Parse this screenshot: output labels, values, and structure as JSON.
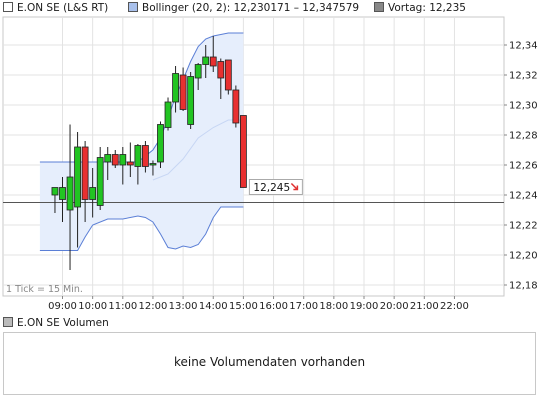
{
  "legend": {
    "instrument": "E.ON SE (L&S RT)",
    "bollinger": "Bollinger (20, 2): 12,230171 – 12,347579",
    "previous_close": "Vortag: 12,235"
  },
  "colors": {
    "up": "#22c422",
    "down": "#e83030",
    "band_fill": "#e6eefc",
    "band_line": "#5b7fd6",
    "grid": "#e3e3e3",
    "previous_close_line": "#555555",
    "price_arrow": "#e03030"
  },
  "tick_note": "1 Tick = 15 Min.",
  "price_label": "12,245",
  "volume": {
    "title": "E.ON SE Volumen",
    "message": "keine Volumendaten vorhanden"
  },
  "chart_data": {
    "type": "candlestick",
    "y_ticks": [
      "12,18",
      "12,20",
      "12,22",
      "12,24",
      "12,26",
      "12,28",
      "12,30",
      "12,32",
      "12,34"
    ],
    "x_ticks": [
      "09:00",
      "10:00",
      "11:00",
      "12:00",
      "13:00",
      "14:00",
      "15:00",
      "16:00",
      "17:00",
      "18:00",
      "19:00",
      "20:00",
      "21:00",
      "22:00"
    ],
    "ylim": [
      12.18,
      12.35
    ],
    "xlim": [
      8.5,
      22.6
    ],
    "previous_close": 12.235,
    "last_price": 12.245,
    "interval_minutes": 15,
    "candles": [
      {
        "t": 8.75,
        "o": 12.24,
        "h": 12.245,
        "l": 12.228,
        "c": 12.245
      },
      {
        "t": 9.0,
        "o": 12.237,
        "h": 12.252,
        "l": 12.222,
        "c": 12.245
      },
      {
        "t": 9.25,
        "o": 12.23,
        "h": 12.287,
        "l": 12.19,
        "c": 12.252
      },
      {
        "t": 9.5,
        "o": 12.232,
        "h": 12.282,
        "l": 12.205,
        "c": 12.272
      },
      {
        "t": 9.75,
        "o": 12.272,
        "h": 12.276,
        "l": 12.222,
        "c": 12.237
      },
      {
        "t": 10.0,
        "o": 12.237,
        "h": 12.258,
        "l": 12.225,
        "c": 12.245
      },
      {
        "t": 10.25,
        "o": 12.233,
        "h": 12.272,
        "l": 12.23,
        "c": 12.265
      },
      {
        "t": 10.5,
        "o": 12.262,
        "h": 12.272,
        "l": 12.25,
        "c": 12.267
      },
      {
        "t": 10.75,
        "o": 12.267,
        "h": 12.27,
        "l": 12.258,
        "c": 12.26
      },
      {
        "t": 11.0,
        "o": 12.26,
        "h": 12.272,
        "l": 12.247,
        "c": 12.267
      },
      {
        "t": 11.25,
        "o": 12.262,
        "h": 12.275,
        "l": 12.252,
        "c": 12.26
      },
      {
        "t": 11.5,
        "o": 12.259,
        "h": 12.274,
        "l": 12.247,
        "c": 12.273
      },
      {
        "t": 11.75,
        "o": 12.273,
        "h": 12.276,
        "l": 12.255,
        "c": 12.259
      },
      {
        "t": 12.0,
        "o": 12.26,
        "h": 12.263,
        "l": 12.253,
        "c": 12.261
      },
      {
        "t": 12.25,
        "o": 12.262,
        "h": 12.289,
        "l": 12.258,
        "c": 12.287
      },
      {
        "t": 12.5,
        "o": 12.285,
        "h": 12.305,
        "l": 12.283,
        "c": 12.302
      },
      {
        "t": 12.75,
        "o": 12.302,
        "h": 12.326,
        "l": 12.295,
        "c": 12.321
      },
      {
        "t": 13.0,
        "o": 12.32,
        "h": 12.325,
        "l": 12.296,
        "c": 12.297
      },
      {
        "t": 13.25,
        "o": 12.287,
        "h": 12.322,
        "l": 12.284,
        "c": 12.319
      },
      {
        "t": 13.5,
        "o": 12.318,
        "h": 12.328,
        "l": 12.31,
        "c": 12.327
      },
      {
        "t": 13.75,
        "o": 12.327,
        "h": 12.34,
        "l": 12.318,
        "c": 12.332
      },
      {
        "t": 14.0,
        "o": 12.332,
        "h": 12.346,
        "l": 12.322,
        "c": 12.326
      },
      {
        "t": 14.25,
        "o": 12.329,
        "h": 12.331,
        "l": 12.304,
        "c": 12.318
      },
      {
        "t": 14.5,
        "o": 12.33,
        "h": 12.33,
        "l": 12.307,
        "c": 12.31
      },
      {
        "t": 14.75,
        "o": 12.31,
        "h": 12.313,
        "l": 12.285,
        "c": 12.288
      },
      {
        "t": 15.0,
        "o": 12.293,
        "h": 12.293,
        "l": 12.245,
        "c": 12.245
      }
    ],
    "bollinger_upper": [
      [
        8.25,
        12.262
      ],
      [
        8.75,
        12.262
      ],
      [
        9.0,
        12.262
      ],
      [
        9.5,
        12.262
      ],
      [
        10.0,
        12.262
      ],
      [
        10.5,
        12.262
      ],
      [
        11.0,
        12.262
      ],
      [
        11.5,
        12.262
      ],
      [
        12.0,
        12.27
      ],
      [
        12.25,
        12.278
      ],
      [
        12.5,
        12.291
      ],
      [
        12.75,
        12.306
      ],
      [
        13.0,
        12.317
      ],
      [
        13.25,
        12.329
      ],
      [
        13.5,
        12.339
      ],
      [
        13.75,
        12.344
      ],
      [
        14.0,
        12.346
      ],
      [
        14.5,
        12.348
      ],
      [
        15.0,
        12.348
      ]
    ],
    "bollinger_lower": [
      [
        8.25,
        12.203
      ],
      [
        8.75,
        12.203
      ],
      [
        9.0,
        12.203
      ],
      [
        9.5,
        12.203
      ],
      [
        9.75,
        12.212
      ],
      [
        10.0,
        12.22
      ],
      [
        10.5,
        12.224
      ],
      [
        11.0,
        12.224
      ],
      [
        11.5,
        12.226
      ],
      [
        11.75,
        12.225
      ],
      [
        12.0,
        12.222
      ],
      [
        12.25,
        12.214
      ],
      [
        12.5,
        12.205
      ],
      [
        12.75,
        12.204
      ],
      [
        13.0,
        12.206
      ],
      [
        13.25,
        12.205
      ],
      [
        13.5,
        12.207
      ],
      [
        13.75,
        12.214
      ],
      [
        14.0,
        12.225
      ],
      [
        14.25,
        12.232
      ],
      [
        14.5,
        12.232
      ],
      [
        15.0,
        12.232
      ]
    ],
    "bollinger_middle": [
      [
        12.0,
        12.25
      ],
      [
        12.5,
        12.254
      ],
      [
        13.0,
        12.264
      ],
      [
        13.5,
        12.278
      ],
      [
        14.0,
        12.285
      ],
      [
        14.5,
        12.29
      ],
      [
        15.0,
        12.29
      ]
    ]
  }
}
